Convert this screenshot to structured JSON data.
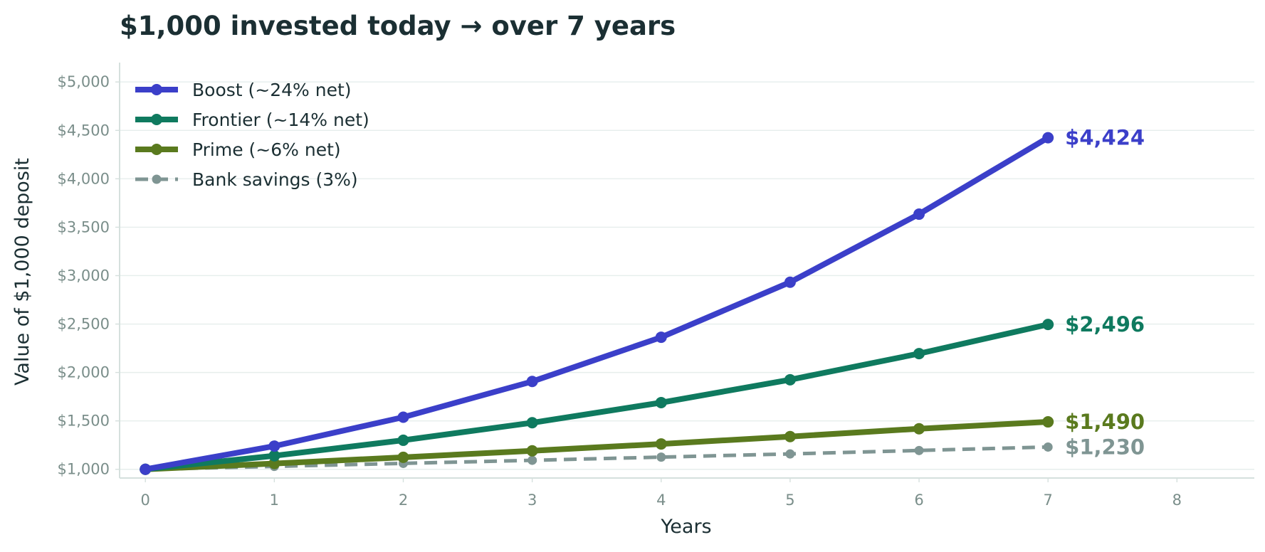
{
  "chart_data": {
    "type": "line",
    "title": "$1,000 invested today → over 7 years",
    "xlabel": "Years",
    "ylabel": "Value of $1,000 deposit",
    "xlim": [
      -0.2,
      8.6
    ],
    "ylim": [
      910,
      5200
    ],
    "x_ticks": [
      0,
      1,
      2,
      3,
      4,
      5,
      6,
      7,
      8
    ],
    "y_ticks": [
      1000,
      1500,
      2000,
      2500,
      3000,
      3500,
      4000,
      4500,
      5000
    ],
    "y_tick_labels": [
      "$1,000",
      "$1,500",
      "$2,000",
      "$2,500",
      "$3,000",
      "$3,500",
      "$4,000",
      "$4,500",
      "$5,000"
    ],
    "grid": "horizontal",
    "legend_position": "top-left",
    "x": [
      0,
      1,
      2,
      3,
      4,
      5,
      6,
      7
    ],
    "series": [
      {
        "name": "Boost (~24% net)",
        "values": [
          1000,
          1240,
          1538,
          1907,
          2364,
          2932,
          3635,
          4424
        ],
        "color": "#3b3fc9",
        "dash": false,
        "end_label": "$4,424"
      },
      {
        "name": "Frontier (~14% net)",
        "values": [
          1000,
          1140,
          1300,
          1481,
          1689,
          1925,
          2195,
          2496
        ],
        "color": "#0f7a5f",
        "dash": false,
        "end_label": "$2,496"
      },
      {
        "name": "Prime (~6% net)",
        "values": [
          1000,
          1060,
          1124,
          1191,
          1262,
          1338,
          1419,
          1490
        ],
        "color": "#5a7a1e",
        "dash": false,
        "end_label": "$1,490"
      },
      {
        "name": "Bank savings (3%)",
        "values": [
          1000,
          1030,
          1061,
          1093,
          1126,
          1159,
          1194,
          1230
        ],
        "color": "#7f9593",
        "dash": true,
        "end_label": "$1,230"
      }
    ]
  }
}
